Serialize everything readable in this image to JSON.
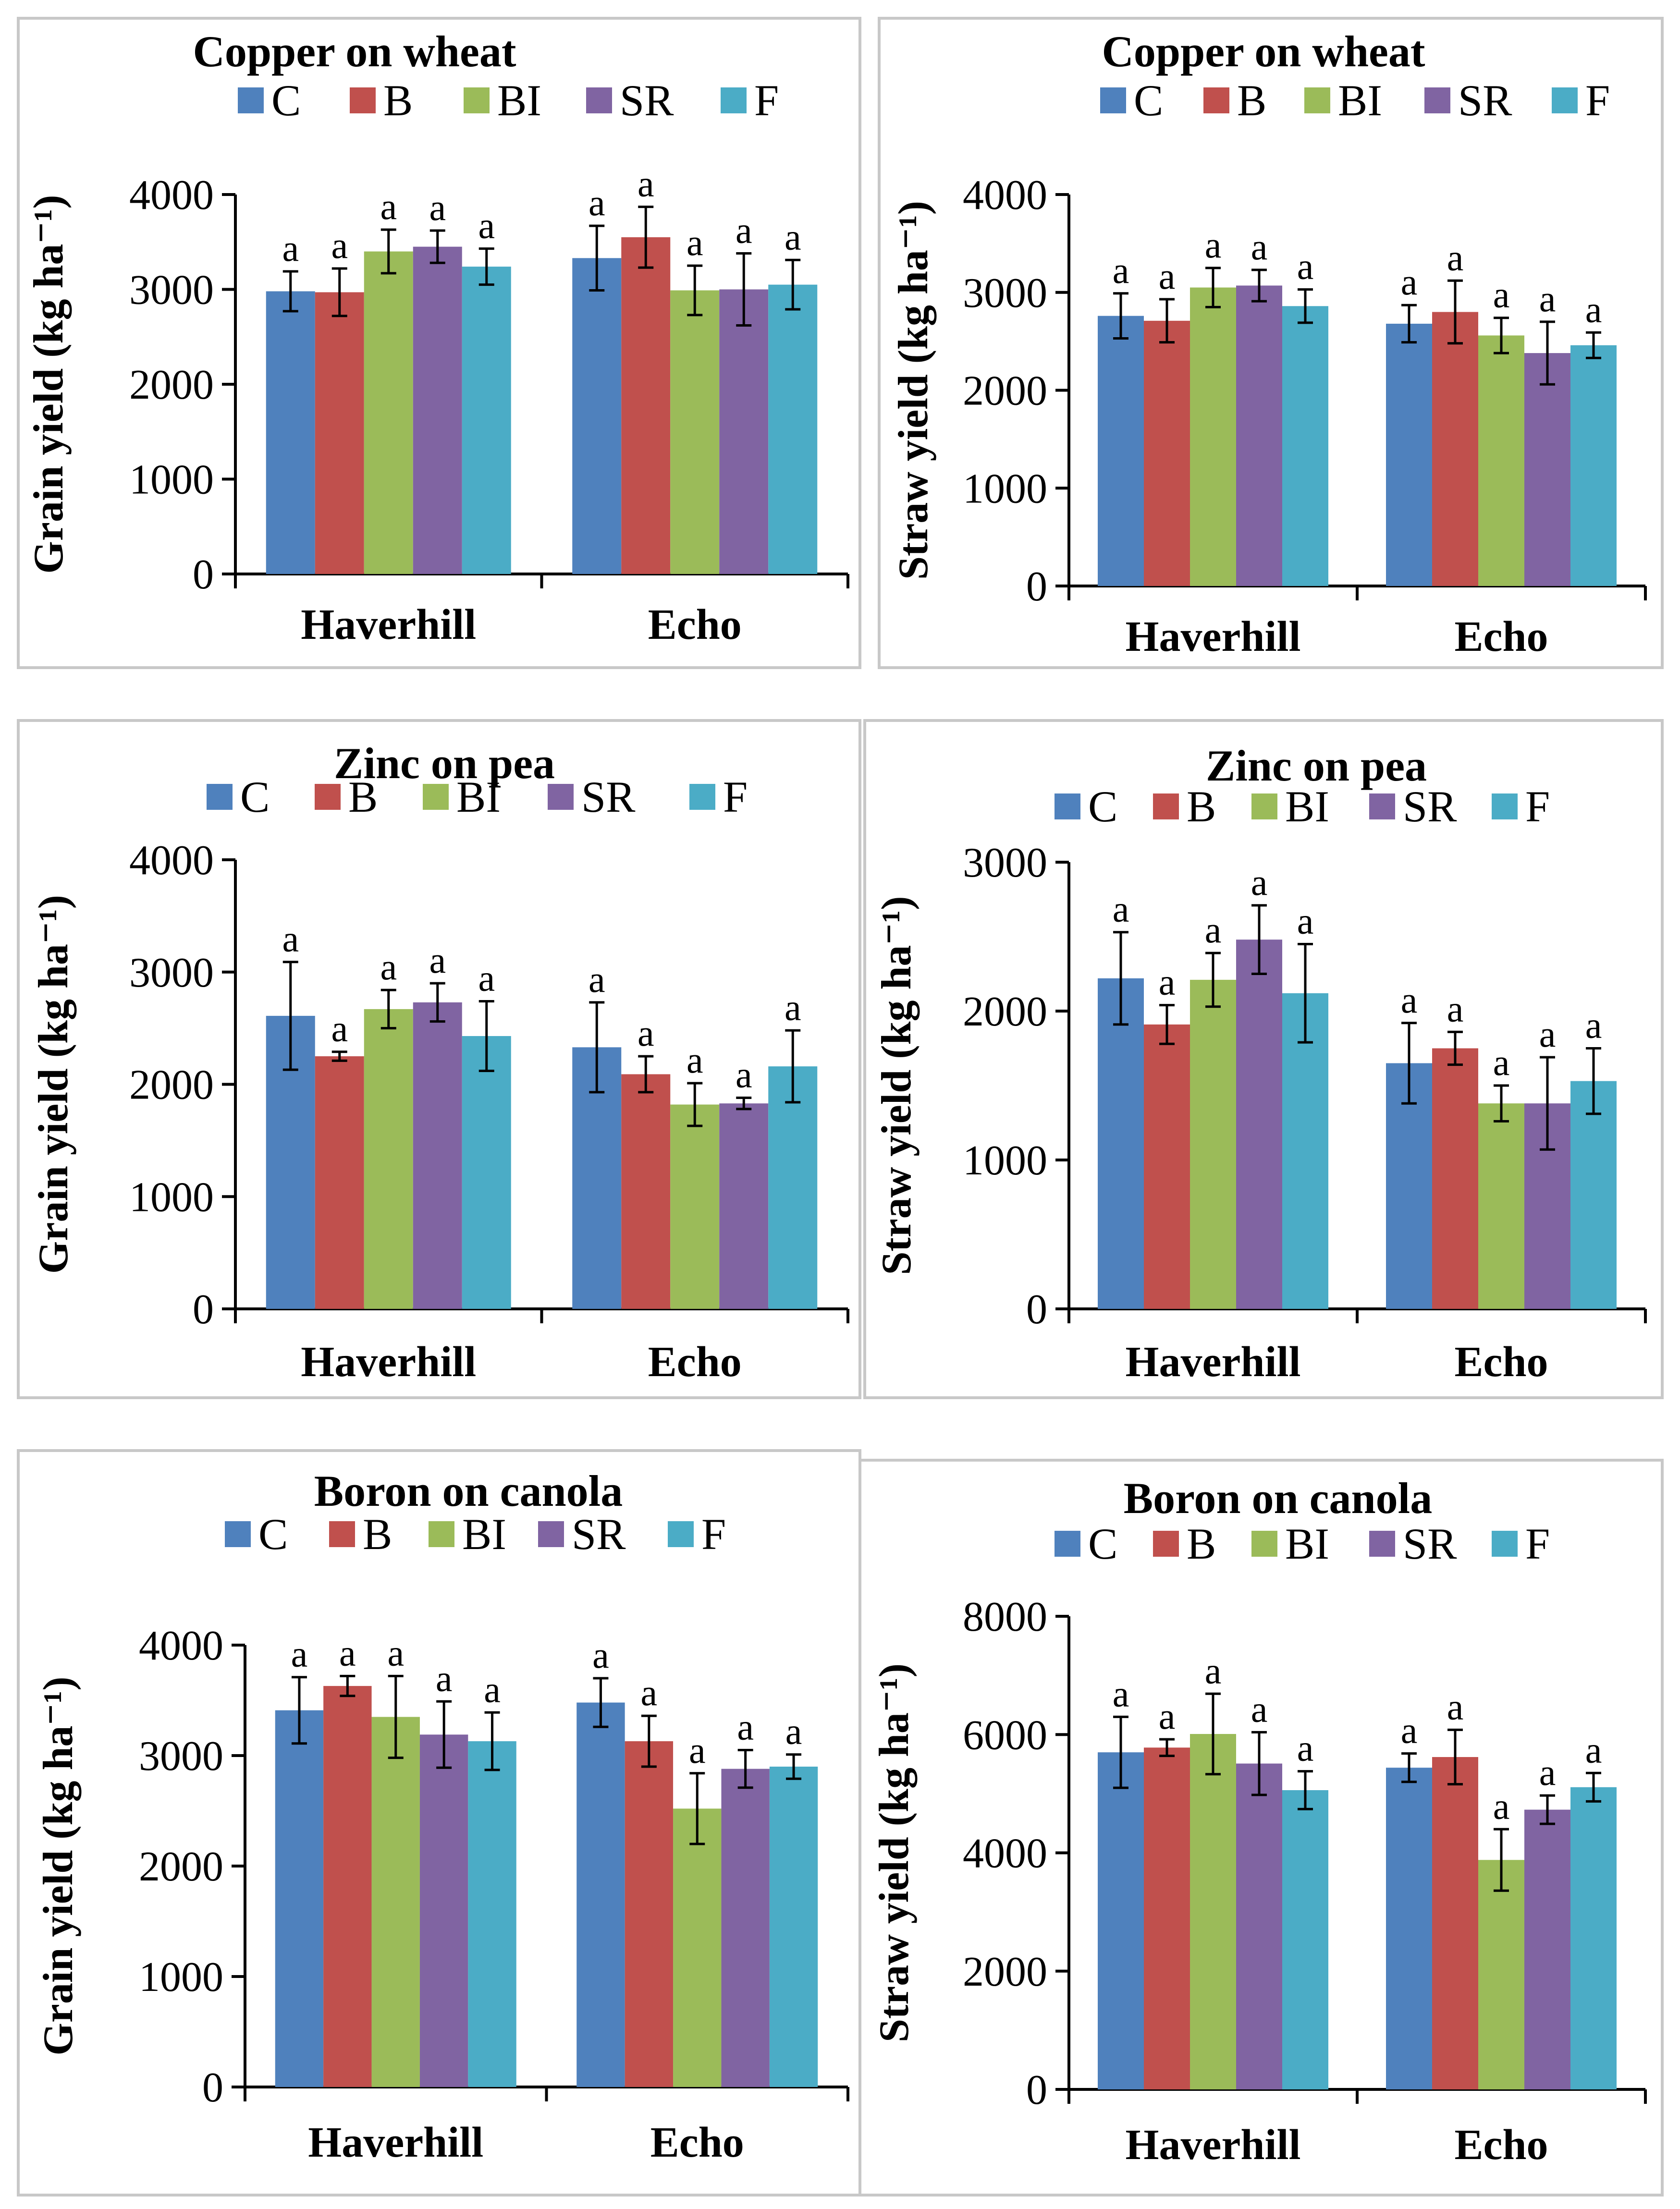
{
  "colors": {
    "C": "#4f81bd",
    "B": "#c0504d",
    "BI": "#9bbb59",
    "SR": "#8064a2",
    "F": "#4bacc6"
  },
  "chart_data": [
    {
      "type": "bar",
      "title": "Copper on wheat",
      "ylabel": "Grain yield (kg ha⁻¹)",
      "ylim": [
        0,
        4000
      ],
      "yticks": [
        "0",
        "1000",
        "2000",
        "3000",
        "4000"
      ],
      "categories": [
        "Haverhill",
        "Echo"
      ],
      "series": [
        {
          "name": "C",
          "values": [
            2980,
            3330
          ],
          "errors": [
            210,
            340
          ],
          "sig": [
            "a",
            "a"
          ]
        },
        {
          "name": "B",
          "values": [
            2970,
            3550
          ],
          "errors": [
            250,
            320
          ],
          "sig": [
            "a",
            "a"
          ]
        },
        {
          "name": "BI",
          "values": [
            3400,
            2990
          ],
          "errors": [
            230,
            260
          ],
          "sig": [
            "a",
            "a"
          ]
        },
        {
          "name": "SR",
          "values": [
            3450,
            3000
          ],
          "errors": [
            170,
            380
          ],
          "sig": [
            "a",
            "a"
          ]
        },
        {
          "name": "F",
          "values": [
            3240,
            3050
          ],
          "errors": [
            190,
            260
          ],
          "sig": [
            "a",
            "a"
          ]
        }
      ]
    },
    {
      "type": "bar",
      "title": "Copper on wheat",
      "ylabel": "Straw yield (kg ha⁻¹)",
      "ylim": [
        0,
        4000
      ],
      "yticks": [
        "0",
        "1000",
        "2000",
        "3000",
        "4000"
      ],
      "categories": [
        "Haverhill",
        "Echo"
      ],
      "series": [
        {
          "name": "C",
          "values": [
            2760,
            2680
          ],
          "errors": [
            230,
            190
          ],
          "sig": [
            "a",
            "a"
          ]
        },
        {
          "name": "B",
          "values": [
            2710,
            2800
          ],
          "errors": [
            220,
            320
          ],
          "sig": [
            "a",
            "a"
          ]
        },
        {
          "name": "BI",
          "values": [
            3050,
            2560
          ],
          "errors": [
            200,
            180
          ],
          "sig": [
            "a",
            "a"
          ]
        },
        {
          "name": "SR",
          "values": [
            3070,
            2380
          ],
          "errors": [
            160,
            320
          ],
          "sig": [
            "a",
            "a"
          ]
        },
        {
          "name": "F",
          "values": [
            2860,
            2460
          ],
          "errors": [
            170,
            130
          ],
          "sig": [
            "a",
            "a"
          ]
        }
      ]
    },
    {
      "type": "bar",
      "title": "Zinc on pea",
      "ylabel": "Grain yield (kg ha⁻¹)",
      "ylim": [
        0,
        4000
      ],
      "yticks": [
        "0",
        "1000",
        "2000",
        "3000",
        "4000"
      ],
      "categories": [
        "Haverhill",
        "Echo"
      ],
      "series": [
        {
          "name": "C",
          "values": [
            2610,
            2330
          ],
          "errors": [
            480,
            400
          ],
          "sig": [
            "a",
            "a"
          ]
        },
        {
          "name": "B",
          "values": [
            2250,
            2090
          ],
          "errors": [
            40,
            160
          ],
          "sig": [
            "a",
            "a"
          ]
        },
        {
          "name": "BI",
          "values": [
            2670,
            1820
          ],
          "errors": [
            170,
            190
          ],
          "sig": [
            "a",
            "a"
          ]
        },
        {
          "name": "SR",
          "values": [
            2730,
            1830
          ],
          "errors": [
            170,
            50
          ],
          "sig": [
            "a",
            "a"
          ]
        },
        {
          "name": "F",
          "values": [
            2430,
            2160
          ],
          "errors": [
            310,
            320
          ],
          "sig": [
            "a",
            "a"
          ]
        }
      ]
    },
    {
      "type": "bar",
      "title": "Zinc on pea",
      "ylabel": "Straw yield (kg ha⁻¹)",
      "ylim": [
        0,
        3000
      ],
      "yticks": [
        "0",
        "1000",
        "2000",
        "3000"
      ],
      "categories": [
        "Haverhill",
        "Echo"
      ],
      "series": [
        {
          "name": "C",
          "values": [
            2220,
            1650
          ],
          "errors": [
            310,
            270
          ],
          "sig": [
            "a",
            "a"
          ]
        },
        {
          "name": "B",
          "values": [
            1910,
            1750
          ],
          "errors": [
            130,
            110
          ],
          "sig": [
            "a",
            "a"
          ]
        },
        {
          "name": "BI",
          "values": [
            2210,
            1380
          ],
          "errors": [
            180,
            120
          ],
          "sig": [
            "a",
            "a"
          ]
        },
        {
          "name": "SR",
          "values": [
            2480,
            1380
          ],
          "errors": [
            230,
            310
          ],
          "sig": [
            "a",
            "a"
          ]
        },
        {
          "name": "F",
          "values": [
            2120,
            1530
          ],
          "errors": [
            330,
            220
          ],
          "sig": [
            "a",
            "a"
          ]
        }
      ]
    },
    {
      "type": "bar",
      "title": "Boron on canola",
      "ylabel": "Grain yield (kg ha⁻¹)",
      "ylim": [
        0,
        4000
      ],
      "yticks": [
        "0",
        "1000",
        "2000",
        "3000",
        "4000"
      ],
      "categories": [
        "Haverhill",
        "Echo"
      ],
      "series": [
        {
          "name": "C",
          "values": [
            3410,
            3480
          ],
          "errors": [
            300,
            220
          ],
          "sig": [
            "a",
            "a"
          ]
        },
        {
          "name": "B",
          "values": [
            3630,
            3130
          ],
          "errors": [
            90,
            230
          ],
          "sig": [
            "a",
            "a"
          ]
        },
        {
          "name": "BI",
          "values": [
            3350,
            2520
          ],
          "errors": [
            370,
            320
          ],
          "sig": [
            "a",
            "a"
          ]
        },
        {
          "name": "SR",
          "values": [
            3190,
            2880
          ],
          "errors": [
            300,
            170
          ],
          "sig": [
            "a",
            "a"
          ]
        },
        {
          "name": "F",
          "values": [
            3130,
            2900
          ],
          "errors": [
            260,
            110
          ],
          "sig": [
            "a",
            "a"
          ]
        }
      ]
    },
    {
      "type": "bar",
      "title": "Boron on canola",
      "ylabel": "Straw yield (kg ha⁻¹)",
      "ylim": [
        0,
        8000
      ],
      "yticks": [
        "0",
        "2000",
        "4000",
        "6000",
        "8000"
      ],
      "categories": [
        "Haverhill",
        "Echo"
      ],
      "series": [
        {
          "name": "C",
          "values": [
            5700,
            5440
          ],
          "errors": [
            600,
            240
          ],
          "sig": [
            "a",
            "a"
          ]
        },
        {
          "name": "B",
          "values": [
            5780,
            5620
          ],
          "errors": [
            140,
            460
          ],
          "sig": [
            "a",
            "a"
          ]
        },
        {
          "name": "BI",
          "values": [
            6010,
            3880
          ],
          "errors": [
            680,
            520
          ],
          "sig": [
            "a",
            "a"
          ]
        },
        {
          "name": "SR",
          "values": [
            5510,
            4730
          ],
          "errors": [
            530,
            240
          ],
          "sig": [
            "a",
            "a"
          ]
        },
        {
          "name": "F",
          "values": [
            5060,
            5110
          ],
          "errors": [
            320,
            240
          ],
          "sig": [
            "a",
            "a"
          ]
        }
      ]
    }
  ]
}
